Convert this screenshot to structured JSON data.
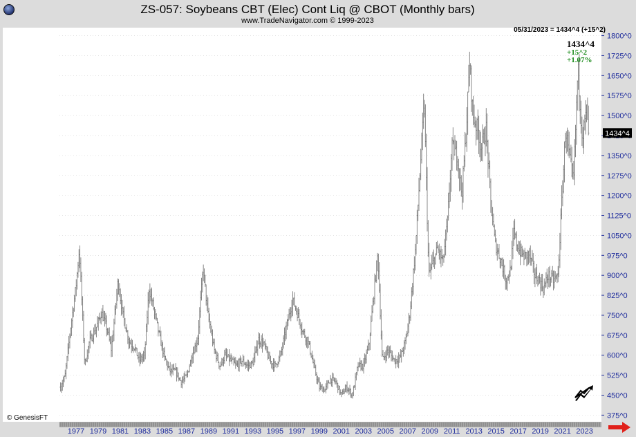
{
  "header": {
    "title": "ZS-057:  Soybeans CBT (Elec) Cont Liq @ CBOT  (Monthly bars)",
    "subtitle": "www.TradeNavigator.com © 1999-2023"
  },
  "readout": {
    "date_line": "05/31/2023 = 1434^4 (+15^2)",
    "last_price": "1434^4",
    "change": "+15^2",
    "change_pct": "+1.07%",
    "price_tag": "1434^4"
  },
  "footer": {
    "copyright": "© GenesisFT"
  },
  "colors": {
    "background": "#ffffff",
    "panel": "#dcdcdc",
    "bars": "#7a7a7a",
    "axis_text": "#1c2a9c",
    "change_text": "#1a8a1a",
    "arrow": "#e0201a"
  },
  "icons": {
    "globe": "globe-icon",
    "trend": "trend-up-icon",
    "scroll": "scroll-right-arrow-icon"
  },
  "chart_data": {
    "type": "ohlc-bar",
    "period": "monthly",
    "ylim": [
      350,
      1830
    ],
    "xlim": [
      1975.5,
      2024.4
    ],
    "y_ticks": [
      375,
      450,
      525,
      600,
      675,
      750,
      825,
      900,
      975,
      1050,
      1125,
      1200,
      1275,
      1350,
      1425,
      1500,
      1575,
      1650,
      1725,
      1800
    ],
    "y_tick_labels": [
      "375^0",
      "450^0",
      "525^0",
      "600^0",
      "675^0",
      "750^0",
      "825^0",
      "900^0",
      "975^0",
      "1050^0",
      "1125^0",
      "1200^0",
      "1275^0",
      "1350^0",
      "1425^0",
      "1500^0",
      "1575^0",
      "1650^0",
      "1725^0",
      "1800^0"
    ],
    "x_ticks": [
      1977,
      1979,
      1981,
      1983,
      1985,
      1987,
      1989,
      1991,
      1993,
      1995,
      1997,
      1999,
      2001,
      2003,
      2005,
      2007,
      2009,
      2011,
      2013,
      2015,
      2017,
      2019,
      2021,
      2023
    ],
    "x_tick_labels": [
      "1977",
      "1979",
      "1981",
      "1983",
      "1985",
      "1987",
      "1989",
      "1991",
      "1993",
      "1995",
      "1997",
      "1999",
      "2001",
      "2003",
      "2005",
      "2007",
      "2009",
      "2011",
      "2013",
      "2015",
      "2017",
      "2019",
      "2021",
      "2023"
    ],
    "last_close": 1434.5,
    "keypoints": [
      [
        1975.6,
        480
      ],
      [
        1976.0,
        520
      ],
      [
        1976.5,
        700
      ],
      [
        1977.0,
        860
      ],
      [
        1977.3,
        1000
      ],
      [
        1977.8,
        560
      ],
      [
        1978.2,
        650
      ],
      [
        1978.8,
        700
      ],
      [
        1979.3,
        760
      ],
      [
        1979.8,
        700
      ],
      [
        1980.2,
        620
      ],
      [
        1980.8,
        880
      ],
      [
        1981.2,
        760
      ],
      [
        1981.8,
        650
      ],
      [
        1982.3,
        630
      ],
      [
        1982.7,
        580
      ],
      [
        1983.2,
        600
      ],
      [
        1983.6,
        850
      ],
      [
        1984.0,
        780
      ],
      [
        1984.5,
        680
      ],
      [
        1985.0,
        590
      ],
      [
        1985.5,
        540
      ],
      [
        1986.0,
        540
      ],
      [
        1986.5,
        500
      ],
      [
        1987.0,
        520
      ],
      [
        1987.5,
        600
      ],
      [
        1988.0,
        660
      ],
      [
        1988.5,
        930
      ],
      [
        1988.9,
        760
      ],
      [
        1989.5,
        620
      ],
      [
        1990.0,
        560
      ],
      [
        1990.5,
        600
      ],
      [
        1991.0,
        580
      ],
      [
        1991.5,
        560
      ],
      [
        1992.0,
        580
      ],
      [
        1992.5,
        560
      ],
      [
        1993.0,
        570
      ],
      [
        1993.5,
        660
      ],
      [
        1994.0,
        640
      ],
      [
        1994.5,
        580
      ],
      [
        1995.0,
        560
      ],
      [
        1995.5,
        600
      ],
      [
        1996.0,
        700
      ],
      [
        1996.6,
        810
      ],
      [
        1997.0,
        760
      ],
      [
        1997.5,
        690
      ],
      [
        1998.0,
        650
      ],
      [
        1998.5,
        560
      ],
      [
        1999.0,
        480
      ],
      [
        1999.5,
        470
      ],
      [
        2000.0,
        510
      ],
      [
        2000.5,
        500
      ],
      [
        2001.0,
        450
      ],
      [
        2001.5,
        480
      ],
      [
        2002.0,
        450
      ],
      [
        2002.5,
        560
      ],
      [
        2003.0,
        560
      ],
      [
        2003.5,
        640
      ],
      [
        2004.0,
        860
      ],
      [
        2004.3,
        980
      ],
      [
        2004.7,
        580
      ],
      [
        2005.2,
        620
      ],
      [
        2005.8,
        580
      ],
      [
        2006.3,
        590
      ],
      [
        2006.8,
        650
      ],
      [
        2007.2,
        760
      ],
      [
        2007.7,
        1000
      ],
      [
        2008.2,
        1350
      ],
      [
        2008.5,
        1550
      ],
      [
        2008.9,
        900
      ],
      [
        2009.3,
        950
      ],
      [
        2009.7,
        1000
      ],
      [
        2010.2,
        950
      ],
      [
        2010.6,
        1100
      ],
      [
        2011.0,
        1380
      ],
      [
        2011.5,
        1350
      ],
      [
        2011.9,
        1200
      ],
      [
        2012.3,
        1450
      ],
      [
        2012.6,
        1700
      ],
      [
        2012.9,
        1500
      ],
      [
        2013.3,
        1450
      ],
      [
        2013.7,
        1380
      ],
      [
        2014.1,
        1450
      ],
      [
        2014.5,
        1180
      ],
      [
        2014.9,
        1020
      ],
      [
        2015.4,
        960
      ],
      [
        2015.9,
        880
      ],
      [
        2016.3,
        920
      ],
      [
        2016.6,
        1060
      ],
      [
        2017.0,
        1000
      ],
      [
        2017.5,
        970
      ],
      [
        2018.0,
        980
      ],
      [
        2018.5,
        900
      ],
      [
        2018.9,
        880
      ],
      [
        2019.3,
        850
      ],
      [
        2019.7,
        900
      ],
      [
        2020.2,
        880
      ],
      [
        2020.6,
        900
      ],
      [
        2020.9,
        1150
      ],
      [
        2021.3,
        1450
      ],
      [
        2021.6,
        1350
      ],
      [
        2022.0,
        1250
      ],
      [
        2022.4,
        1680
      ],
      [
        2022.8,
        1420
      ],
      [
        2023.2,
        1520
      ],
      [
        2023.4,
        1434.5
      ]
    ]
  }
}
